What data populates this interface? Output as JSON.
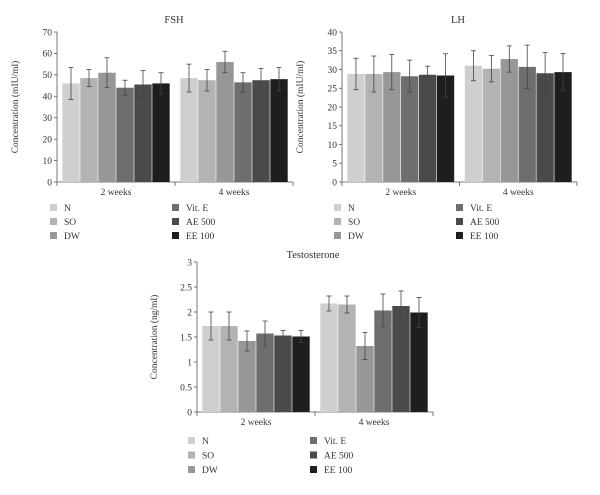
{
  "chart_data": [
    {
      "type": "bar",
      "title": "FSH",
      "ylabel": "Concentration (mIU/ml)",
      "xlabel": "",
      "categories": [
        "2 weeks",
        "4 weeks"
      ],
      "ylim": [
        0,
        70
      ],
      "yticks": [
        "0",
        "10",
        "20",
        "30",
        "40",
        "50",
        "60",
        "70"
      ],
      "grid": false,
      "error_bars": true,
      "series": [
        {
          "name": "N",
          "values": [
            46,
            48.5
          ],
          "errors": [
            7.5,
            6.5
          ],
          "color": "#cfcfcf"
        },
        {
          "name": "SO",
          "values": [
            48.5,
            47.5
          ],
          "errors": [
            4,
            5
          ],
          "color": "#b3b3b3"
        },
        {
          "name": "DW",
          "values": [
            51,
            56
          ],
          "errors": [
            7,
            5
          ],
          "color": "#979797"
        },
        {
          "name": "Vit. E",
          "values": [
            44,
            46.5
          ],
          "errors": [
            3.5,
            4.5
          ],
          "color": "#6e6e6e"
        },
        {
          "name": "AE 500",
          "values": [
            45.5,
            47.5
          ],
          "errors": [
            6.5,
            5.5
          ],
          "color": "#4a4a4a"
        },
        {
          "name": "EE 100",
          "values": [
            46,
            48
          ],
          "errors": [
            5,
            5.5
          ],
          "color": "#1e1e1e"
        }
      ]
    },
    {
      "type": "bar",
      "title": "LH",
      "ylabel": "Concentration (mIU/ml)",
      "xlabel": "",
      "categories": [
        "2 weeks",
        "4 weeks"
      ],
      "ylim": [
        0,
        40
      ],
      "yticks": [
        "0",
        "5",
        "10",
        "15",
        "20",
        "25",
        "30",
        "35",
        "40"
      ],
      "grid": false,
      "error_bars": true,
      "series": [
        {
          "name": "N",
          "values": [
            28.8,
            31
          ],
          "errors": [
            4.2,
            4
          ],
          "color": "#cfcfcf"
        },
        {
          "name": "SO",
          "values": [
            28.8,
            30.2
          ],
          "errors": [
            4.8,
            3.5
          ],
          "color": "#b3b3b3"
        },
        {
          "name": "DW",
          "values": [
            29.3,
            32.8
          ],
          "errors": [
            4.7,
            3.5
          ],
          "color": "#979797"
        },
        {
          "name": "Vit. E",
          "values": [
            28.2,
            30.7
          ],
          "errors": [
            4.3,
            5.8
          ],
          "color": "#6e6e6e"
        },
        {
          "name": "AE 500",
          "values": [
            28.6,
            29
          ],
          "errors": [
            2.3,
            5.5
          ],
          "color": "#4a4a4a"
        },
        {
          "name": "EE 100",
          "values": [
            28.4,
            29.3
          ],
          "errors": [
            5.8,
            5
          ],
          "color": "#1e1e1e"
        }
      ]
    },
    {
      "type": "bar",
      "title": "Testosterone",
      "ylabel": "Concentration (ng/ml)",
      "xlabel": "",
      "categories": [
        "2 weeks",
        "4 weeks"
      ],
      "ylim": [
        0,
        3
      ],
      "yticks": [
        "0",
        "0.5",
        "1",
        "1.5",
        "2",
        "2.5",
        "3"
      ],
      "grid": false,
      "error_bars": true,
      "series": [
        {
          "name": "N",
          "values": [
            1.72,
            2.17
          ],
          "errors": [
            0.28,
            0.15
          ],
          "color": "#cfcfcf"
        },
        {
          "name": "SO",
          "values": [
            1.72,
            2.15
          ],
          "errors": [
            0.28,
            0.17
          ],
          "color": "#b3b3b3"
        },
        {
          "name": "DW",
          "values": [
            1.42,
            1.32
          ],
          "errors": [
            0.2,
            0.27
          ],
          "color": "#979797"
        },
        {
          "name": "Vit. E",
          "values": [
            1.57,
            2.03
          ],
          "errors": [
            0.25,
            0.33
          ],
          "color": "#6e6e6e"
        },
        {
          "name": "AE 500",
          "values": [
            1.53,
            2.12
          ],
          "errors": [
            0.1,
            0.3
          ],
          "color": "#4a4a4a"
        },
        {
          "name": "EE 100",
          "values": [
            1.51,
            1.99
          ],
          "errors": [
            0.12,
            0.3
          ],
          "color": "#1e1e1e"
        }
      ]
    }
  ]
}
